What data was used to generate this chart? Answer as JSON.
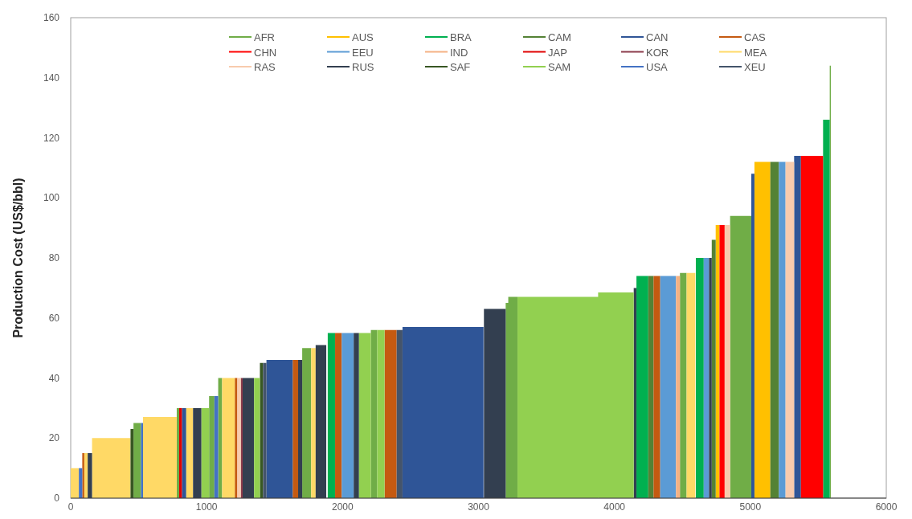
{
  "chart_data": {
    "type": "area",
    "ylabel": "Production Cost (US$/bbl)",
    "xlim": [
      0,
      6000
    ],
    "xticks": [
      0,
      1000,
      2000,
      3000,
      4000,
      5000,
      6000
    ],
    "ylim": [
      0,
      160
    ],
    "yticks": [
      0,
      20,
      40,
      60,
      80,
      100,
      120,
      140,
      160
    ],
    "grid": false,
    "legend": "top",
    "series": [
      {
        "name": "AFR",
        "color": "#70ad47",
        "x": [
          462,
          517,
          null,
          780,
          798,
          null,
          1018,
          1057,
          null,
          1085,
          1114,
          null,
          1703,
          1769,
          null,
          2208,
          2255,
          null,
          3200,
          3219,
          null,
          3219,
          3287,
          null,
          4482,
          4531,
          null,
          4851,
          5007,
          null,
          5584,
          5592
        ],
        "values": [
          25,
          25,
          null,
          30,
          30,
          null,
          34,
          34,
          null,
          40,
          40,
          null,
          50,
          50,
          null,
          56,
          56,
          null,
          65,
          65,
          null,
          67,
          67,
          null,
          75,
          75,
          null,
          94,
          94,
          null,
          144,
          144
        ]
      },
      {
        "name": "AUS",
        "color": "#ffc000",
        "x": [
          4745,
          4773,
          null,
          5030,
          5147
        ],
        "values": [
          91,
          91,
          null,
          112,
          112
        ]
      },
      {
        "name": "BRA",
        "color": "#00b050",
        "x": [
          1891,
          1945,
          null,
          4162,
          4249,
          null,
          4599,
          4657,
          null,
          5535,
          5584
        ],
        "values": [
          55,
          55,
          null,
          74,
          74,
          null,
          80,
          80,
          null,
          126,
          126
        ]
      },
      {
        "name": "CAM",
        "color": "#548235",
        "x": [
          4249,
          4288,
          null,
          4716,
          4745,
          null,
          5147,
          5210
        ],
        "values": [
          74,
          74,
          null,
          86,
          86,
          null,
          112,
          112
        ]
      },
      {
        "name": "CAN",
        "color": "#2f5597",
        "x": [
          818,
          850,
          null,
          1440,
          1634,
          null,
          2441,
          3037,
          null,
          5007,
          5030,
          null,
          5322,
          5372
        ],
        "values": [
          30,
          30,
          null,
          46,
          46,
          null,
          57,
          57,
          null,
          108,
          108,
          null,
          114,
          114
        ]
      },
      {
        "name": "CAS",
        "color": "#c55a11",
        "x": [
          85,
          100,
          null,
          1207,
          1226,
          null,
          1634,
          1673,
          null,
          1945,
          1994,
          null,
          2309,
          2398,
          null,
          4288,
          4337
        ],
        "values": [
          15,
          15,
          null,
          40,
          40,
          null,
          46,
          46,
          null,
          55,
          55,
          null,
          56,
          56,
          null,
          74,
          74
        ]
      },
      {
        "name": "CHN",
        "color": "#ff0000",
        "x": [
          4773,
          4811,
          null,
          5372,
          5535
        ],
        "values": [
          91,
          91,
          null,
          114,
          114
        ]
      },
      {
        "name": "EEU",
        "color": "#5b9bd5",
        "x": [
          1994,
          2082,
          null,
          4337,
          4453,
          null,
          4657,
          4696,
          null,
          5210,
          5259
        ],
        "values": [
          55,
          55,
          null,
          74,
          74,
          null,
          80,
          80,
          null,
          112,
          112
        ]
      },
      {
        "name": "IND",
        "color": "#f4b183",
        "x": [
          4453,
          4482
        ],
        "values": [
          74,
          74
        ]
      },
      {
        "name": "JAP",
        "color": "#e00000",
        "x": [
          798,
          818
        ],
        "values": [
          30,
          30
        ]
      },
      {
        "name": "KOR",
        "color": "#8b3a4a",
        "x": [
          1251,
          1265
        ],
        "values": [
          40,
          40
        ]
      },
      {
        "name": "MEA",
        "color": "#ffd966",
        "x": [
          0,
          60,
          null,
          100,
          125,
          null,
          157,
          440,
          null,
          532,
          780,
          null,
          850,
          900,
          null,
          1114,
          1207,
          null,
          1769,
          1802,
          null,
          4531,
          4595
        ],
        "values": [
          10,
          10,
          null,
          15,
          15,
          null,
          20,
          20,
          null,
          27,
          27,
          null,
          30,
          30,
          null,
          40,
          40,
          null,
          50,
          50,
          null,
          75,
          75
        ]
      },
      {
        "name": "RAS",
        "color": "#f8cbad",
        "x": [
          1226,
          1251,
          null,
          4811,
          4851,
          null,
          5259,
          5322
        ],
        "values": [
          40,
          40,
          null,
          91,
          91,
          null,
          112,
          112
        ]
      },
      {
        "name": "RUS",
        "color": "#333f50",
        "x": [
          125,
          157,
          null,
          900,
          962,
          null,
          1265,
          1349,
          null,
          1673,
          1703,
          null,
          1802,
          1880,
          null,
          2082,
          2121,
          null,
          3040,
          3200,
          null,
          4142,
          4162,
          null,
          4696,
          4716
        ],
        "values": [
          15,
          15,
          null,
          30,
          30,
          null,
          40,
          40,
          null,
          46,
          46,
          null,
          51,
          51,
          null,
          55,
          55,
          null,
          63,
          63,
          null,
          70,
          70,
          null,
          80,
          80
        ]
      },
      {
        "name": "SAF",
        "color": "#385723",
        "x": [
          440,
          462,
          null,
          1392,
          1415
        ],
        "values": [
          23,
          23,
          null,
          45,
          45
        ]
      },
      {
        "name": "SAM",
        "color": "#92d050",
        "x": [
          962,
          1018,
          null,
          1349,
          1392,
          null,
          2121,
          2208,
          null,
          2255,
          2309,
          null,
          3287,
          3880,
          null,
          3880,
          4142
        ],
        "values": [
          30,
          30,
          null,
          40,
          40,
          null,
          55,
          55,
          null,
          56,
          56,
          null,
          67,
          67,
          null,
          68.5,
          68.5
        ]
      },
      {
        "name": "USA",
        "color": "#4472c4",
        "x": [
          60,
          85,
          null,
          517,
          532,
          null,
          1057,
          1085
        ],
        "values": [
          10,
          10,
          null,
          25,
          25,
          null,
          34,
          34
        ]
      },
      {
        "name": "XEU",
        "color": "#44546a",
        "x": [
          1415,
          1440,
          null,
          2398,
          2441
        ],
        "values": [
          45,
          45,
          null,
          56,
          56
        ]
      }
    ]
  }
}
